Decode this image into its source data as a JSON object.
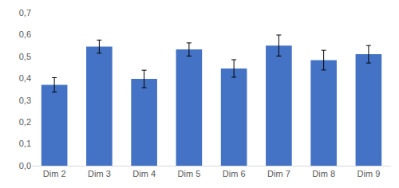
{
  "chart_data": {
    "type": "bar",
    "categories": [
      "Dim 2",
      "Dim 3",
      "Dim 4",
      "Dim 5",
      "Dim 6",
      "Dim 7",
      "Dim 8",
      "Dim 9"
    ],
    "values": [
      0.37,
      0.545,
      0.397,
      0.532,
      0.445,
      0.55,
      0.483,
      0.51
    ],
    "errors": [
      0.033,
      0.03,
      0.04,
      0.03,
      0.04,
      0.048,
      0.045,
      0.04
    ],
    "color": "#4472c4",
    "ylim": [
      0,
      0.7
    ],
    "yticks": [
      {
        "value": 0,
        "label": "0,0"
      },
      {
        "value": 0.1,
        "label": "0,1"
      },
      {
        "value": 0.2,
        "label": "0,2"
      },
      {
        "value": 0.3,
        "label": "0,3"
      },
      {
        "value": 0.4,
        "label": "0,4"
      },
      {
        "value": 0.5,
        "label": "0,5"
      },
      {
        "value": 0.6,
        "label": "0,6"
      },
      {
        "value": 0.7,
        "label": "0,7"
      }
    ],
    "grid": false
  }
}
